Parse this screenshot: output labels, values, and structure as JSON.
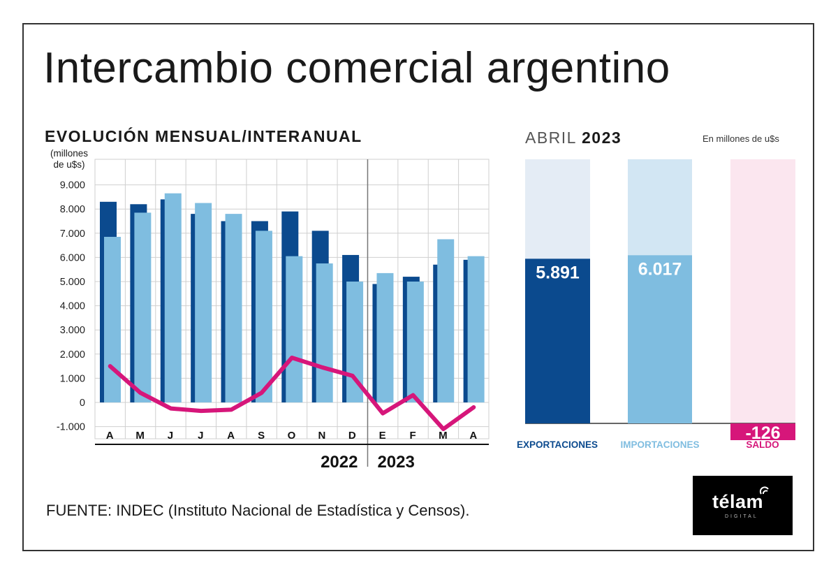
{
  "title": "Intercambio comercial argentino",
  "subtitle": "EVOLUCIÓN MENSUAL/INTERANUAL",
  "units_line1": "(millones",
  "units_line2": "de u$s)",
  "right_heading_light": "ABRIL",
  "right_heading_bold": "2023",
  "right_units": "En millones de u$s",
  "source": "FUENTE: INDEC (Instituto Nacional de Estadística y Censos).",
  "logo": {
    "text": "télam",
    "sub": "DIGITAL"
  },
  "colors": {
    "exports": "#0b4a8e",
    "imports": "#7fbde0",
    "balance": "#d6167a",
    "exports_bg": "#e4ecf5",
    "imports_bg": "#d2e6f3",
    "balance_bg": "#fbe6ef"
  },
  "chart_data": [
    {
      "type": "bar",
      "title": "EVOLUCIÓN MENSUAL/INTERANUAL",
      "ylabel": "(millones de u$s)",
      "ylim": [
        -1000,
        10000
      ],
      "yticks": [
        "9.000",
        "8.000",
        "7.000",
        "6.000",
        "5.000",
        "4.000",
        "3.000",
        "2.000",
        "1.000",
        "0",
        "-1.000"
      ],
      "ytick_values": [
        9000,
        8000,
        7000,
        6000,
        5000,
        4000,
        3000,
        2000,
        1000,
        0,
        -1000
      ],
      "categories": [
        "A",
        "M",
        "J",
        "J",
        "A",
        "S",
        "O",
        "N",
        "D",
        "E",
        "F",
        "M",
        "A"
      ],
      "years": [
        {
          "label": "2022",
          "count": 9
        },
        {
          "label": "2023",
          "count": 4
        }
      ],
      "series": [
        {
          "name": "Exportaciones",
          "type": "bar",
          "values": [
            8300,
            8200,
            8400,
            7800,
            7500,
            7500,
            7900,
            7100,
            6100,
            4900,
            5200,
            5700,
            5900
          ]
        },
        {
          "name": "Importaciones",
          "type": "bar",
          "values": [
            6850,
            7850,
            8650,
            8250,
            7800,
            7100,
            6050,
            5750,
            5000,
            5350,
            5000,
            6750,
            6050
          ]
        },
        {
          "name": "Saldo",
          "type": "line",
          "values": [
            1500,
            400,
            -250,
            -350,
            -300,
            400,
            1850,
            1450,
            1100,
            -450,
            300,
            -1100,
            -200
          ]
        }
      ]
    },
    {
      "type": "bar",
      "title": "ABRIL 2023",
      "ylim": [
        -126,
        10950
      ],
      "categories": [
        "EXPORTACIONES",
        "IMPORTACIONES",
        "SALDO"
      ],
      "values": [
        5891,
        6017,
        -126
      ],
      "labels": [
        "5.891",
        "6.017",
        "-126"
      ]
    }
  ]
}
